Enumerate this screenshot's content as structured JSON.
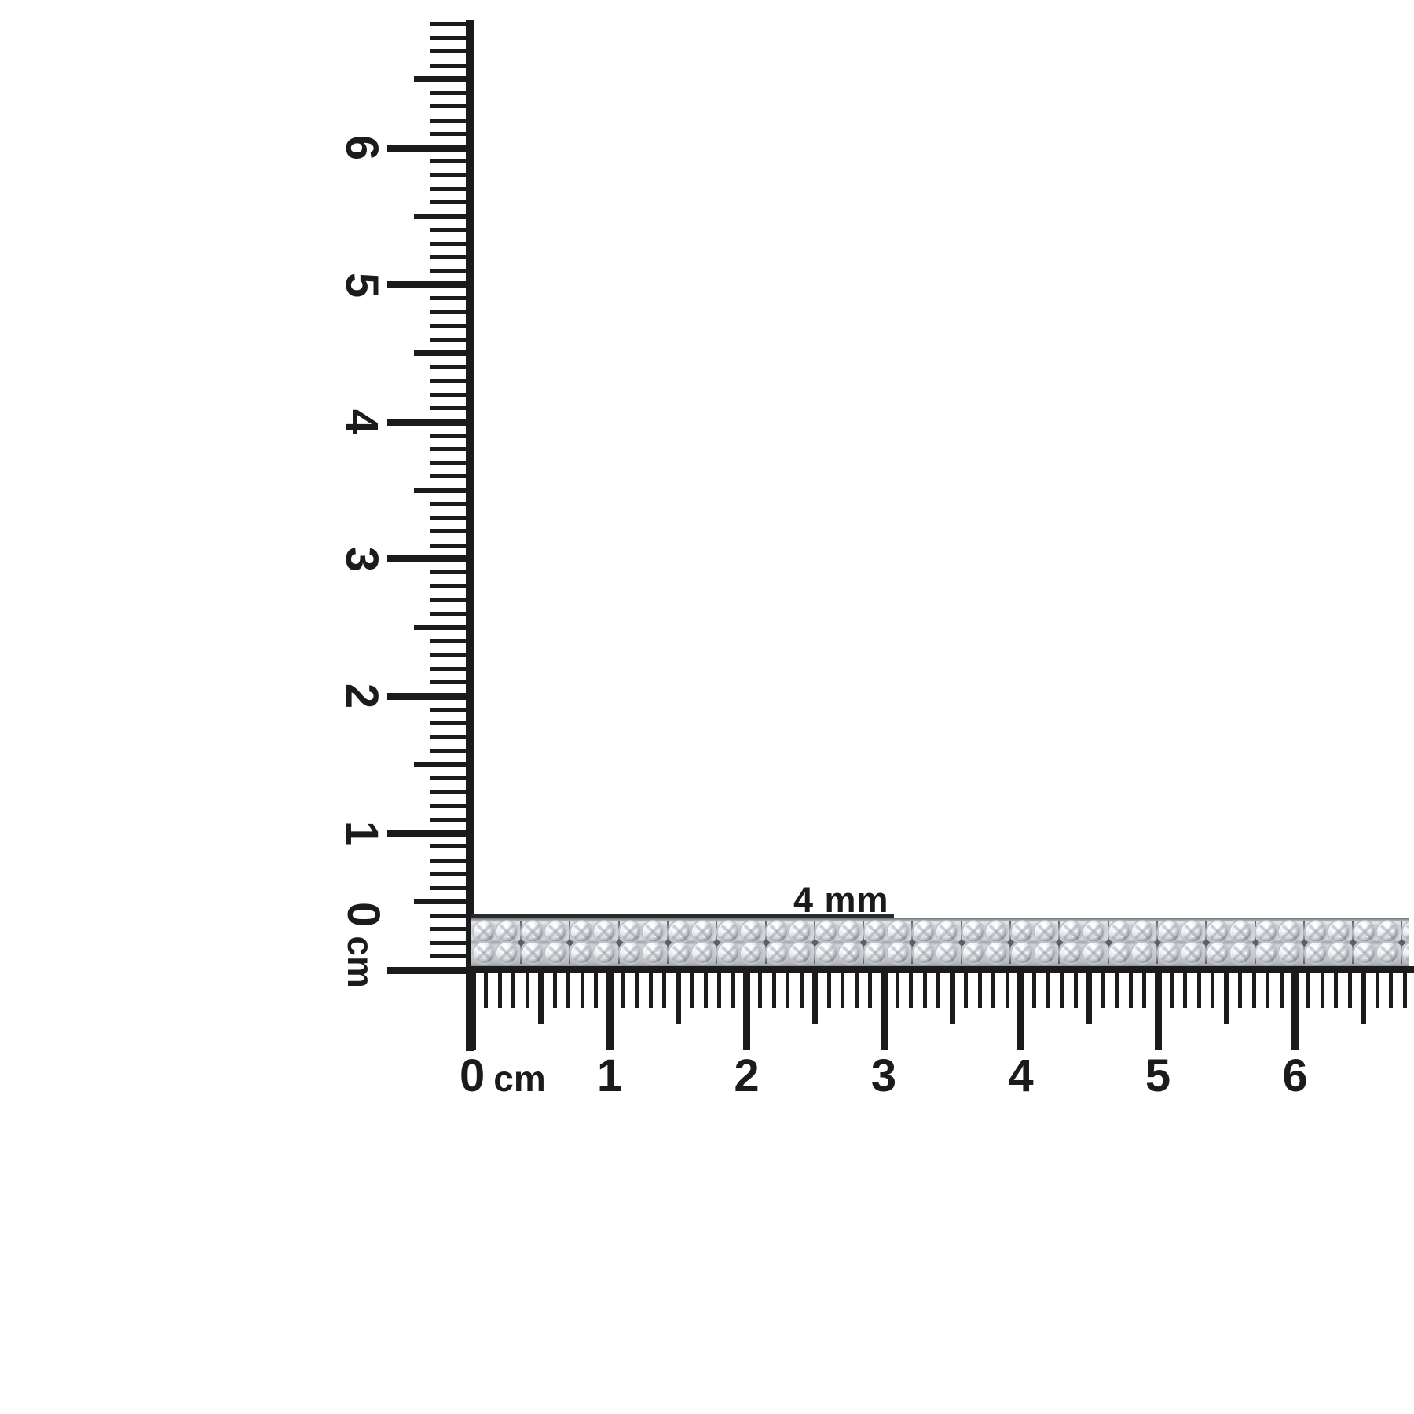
{
  "image": {
    "type": "product measurement photo",
    "subject": "double-row diamond tennis bracelet on a white background with centimeter rulers along the left and bottom edges",
    "background_color": "#ffffff",
    "ink_color": "#1b1b1b"
  },
  "annotation": {
    "width_label": "4 mm"
  },
  "vertical_ruler": {
    "zero_label": "0",
    "unit": "cm",
    "cm_labels": [
      "1",
      "2",
      "3",
      "4",
      "5",
      "6"
    ],
    "minor_ticks_per_cm": 10,
    "max_cm_shown": 6.9,
    "label_rotation_deg": 90
  },
  "horizontal_ruler": {
    "zero_label": "0",
    "unit": "cm",
    "cm_labels": [
      "1",
      "2",
      "3",
      "4",
      "5",
      "6"
    ],
    "minor_ticks_per_cm": 10,
    "max_cm_shown": 6.8
  },
  "bracelet": {
    "kind": "double-row diamond tennis bracelet",
    "visible_links": 20,
    "stone_rows": 2,
    "stone_columns_per_link": 2,
    "measured_width": "4 mm",
    "metal_color": "#c9ccd1",
    "stone_color": "#eef0f3",
    "seam_color": "#5b6068"
  }
}
